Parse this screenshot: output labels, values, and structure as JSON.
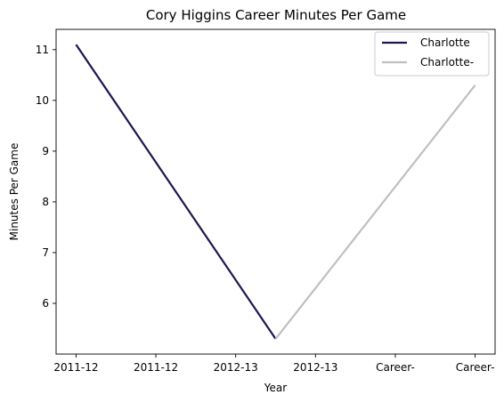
{
  "chart_data": {
    "type": "line",
    "title": "Cory Higgins Career Minutes Per Game",
    "xlabel": "Year",
    "ylabel": "Minutes Per Game",
    "categories": [
      "2011-12",
      "2011-12",
      "2012-13",
      "2012-13",
      "Career-",
      "Career-"
    ],
    "ylim": [
      5.0,
      11.4
    ],
    "yticks": [
      6,
      7,
      8,
      9,
      10,
      11
    ],
    "grid": false,
    "legend_position": "top-right",
    "series": [
      {
        "name": "Charlotte",
        "color": "#1f1550",
        "points": [
          {
            "x": 0,
            "y": 11.1
          },
          {
            "x": 2.5,
            "y": 5.3
          }
        ]
      },
      {
        "name": "Charlotte-",
        "color": "#bfbfbf",
        "points": [
          {
            "x": 2.5,
            "y": 5.3
          },
          {
            "x": 5,
            "y": 10.3
          }
        ]
      }
    ]
  }
}
